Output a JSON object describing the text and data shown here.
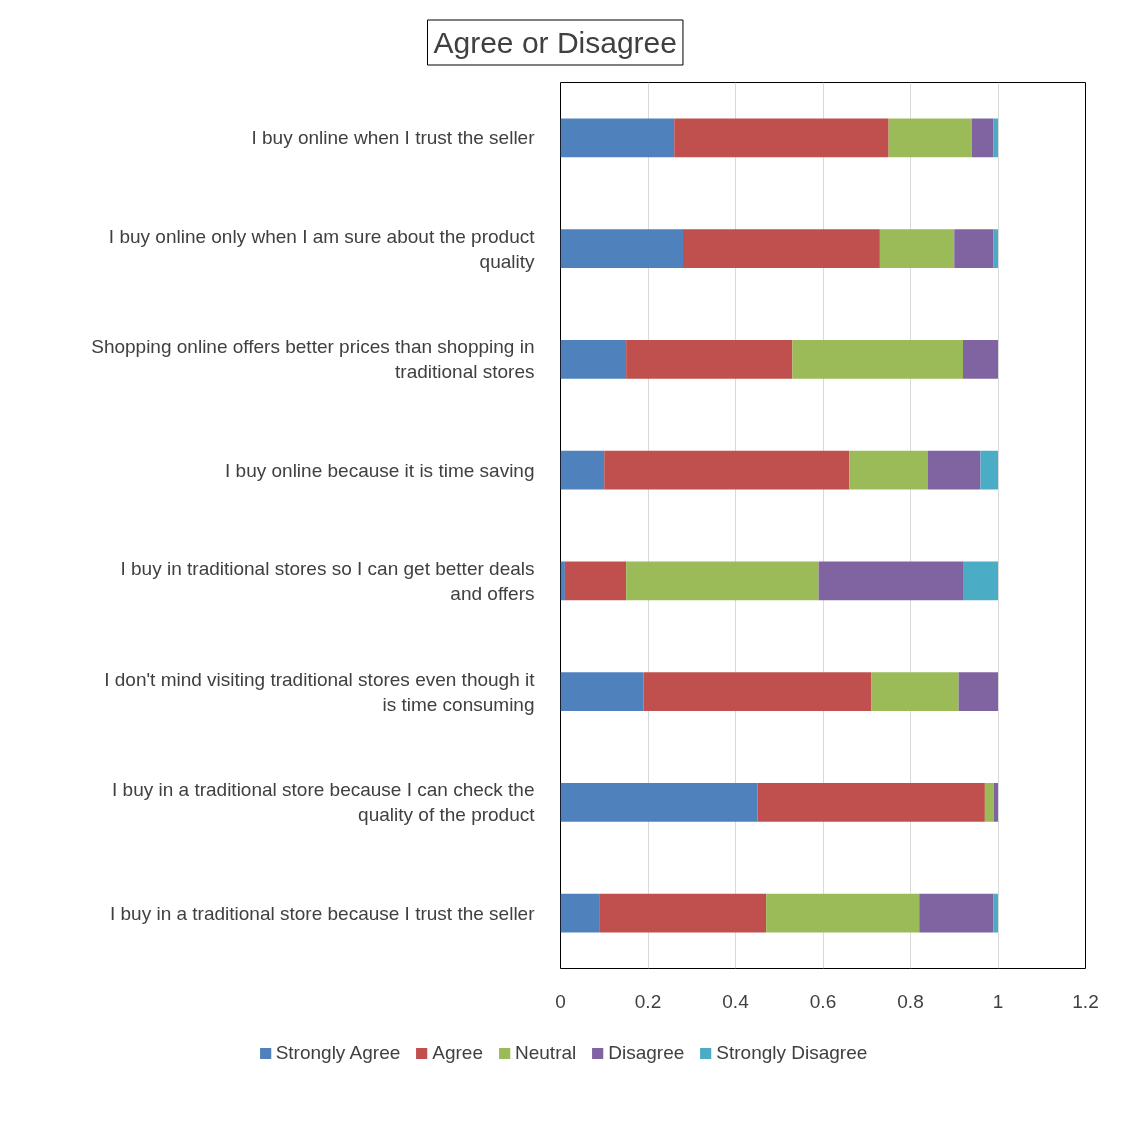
{
  "chart_data": {
    "type": "bar",
    "orientation": "horizontal",
    "stacked": true,
    "title": "Agree or Disagree",
    "categories": [
      "I buy online when I trust the seller",
      "I buy online only when I am sure about the product quality",
      "Shopping online offers better prices than shopping in traditional stores",
      "I buy online because it is time saving",
      "I buy in traditional stores so I can get better deals and offers",
      "I don't mind visiting traditional stores even though it is time consuming",
      "I buy in a traditional store because I can check the quality of the product",
      "I buy in a traditional store because I trust the seller"
    ],
    "series": [
      {
        "name": "Strongly Agree",
        "color": "#4f81bd",
        "values": [
          0.26,
          0.28,
          0.15,
          0.1,
          0.01,
          0.19,
          0.45,
          0.09
        ]
      },
      {
        "name": "Agree",
        "color": "#c0504d",
        "values": [
          0.49,
          0.45,
          0.38,
          0.56,
          0.14,
          0.52,
          0.52,
          0.38
        ]
      },
      {
        "name": "Neutral",
        "color": "#9bbb59",
        "values": [
          0.19,
          0.17,
          0.39,
          0.18,
          0.44,
          0.2,
          0.02,
          0.35
        ]
      },
      {
        "name": "Disagree",
        "color": "#8064a2",
        "values": [
          0.05,
          0.09,
          0.08,
          0.12,
          0.33,
          0.09,
          0.01,
          0.17
        ]
      },
      {
        "name": "Strongly Disagree",
        "color": "#4bacc6",
        "values": [
          0.01,
          0.01,
          0.0,
          0.04,
          0.08,
          0.0,
          0.0,
          0.01
        ]
      }
    ],
    "xlim": [
      0,
      1.2
    ],
    "xticks": [
      0,
      0.2,
      0.4,
      0.6,
      0.8,
      1,
      1.2
    ],
    "grid": "x",
    "legend": "bottom"
  }
}
